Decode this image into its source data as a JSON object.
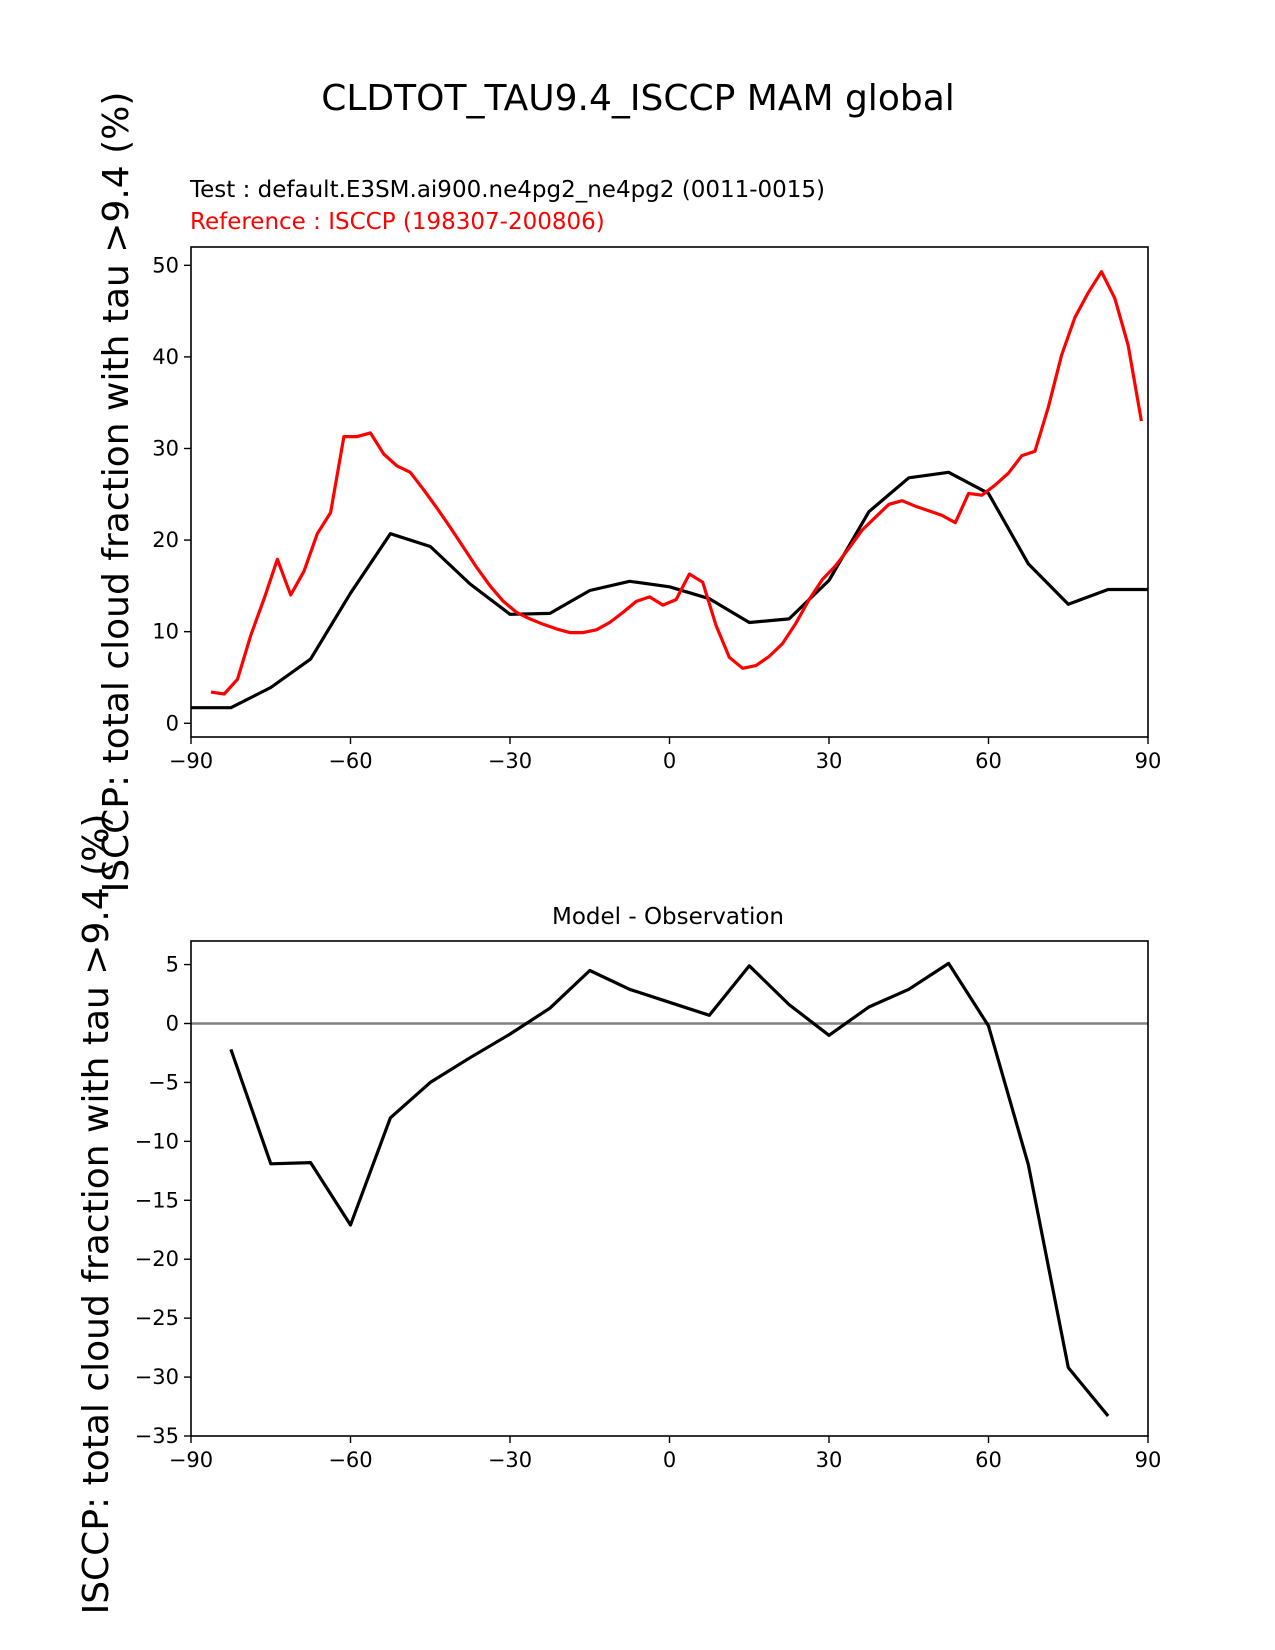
{
  "figure_title": "CLDTOT_TAU9.4_ISCCP MAM global",
  "top_panel": {
    "test_label": "Test : default.E3SM.ai900.ne4pg2_ne4pg2 (0011-0015)",
    "reference_label": "Reference : ISCCP (198307-200806)",
    "ylabel": "ISCCP: total cloud fraction with tau >9.4 (%)"
  },
  "bottom_panel": {
    "title": "Model - Observation",
    "ylabel": "ISCCP: total cloud fraction with tau >9.4 (%)"
  },
  "colors": {
    "test": "#000000",
    "reference": "#ff0000",
    "diff": "#000000",
    "zero_line": "#808080"
  },
  "chart_data": [
    {
      "type": "line",
      "title": "",
      "xlabel": "",
      "ylabel": "ISCCP: total cloud fraction with tau >9.4 (%)",
      "xlim": [
        -90,
        90
      ],
      "ylim": [
        -1.5,
        52
      ],
      "xticks": [
        -90,
        -60,
        -30,
        0,
        30,
        60,
        90
      ],
      "yticks": [
        0,
        10,
        20,
        30,
        40,
        50
      ],
      "grid": false,
      "series": [
        {
          "name": "Test",
          "color": "#000000",
          "x": [
            -90,
            -82.5,
            -75,
            -67.5,
            -60,
            -52.5,
            -45,
            -37.5,
            -30,
            -22.5,
            -15,
            -7.5,
            0,
            7.5,
            15,
            22.5,
            30,
            37.5,
            45,
            52.5,
            60,
            67.5,
            75,
            82.5,
            90
          ],
          "y": [
            1.7,
            1.7,
            3.9,
            7.0,
            14.2,
            20.7,
            19.3,
            15.2,
            11.9,
            12.0,
            14.5,
            15.5,
            14.9,
            13.6,
            11.0,
            11.4,
            15.6,
            23.1,
            26.8,
            27.4,
            25.1,
            17.4,
            13.0,
            14.6,
            14.6
          ]
        },
        {
          "name": "Reference",
          "color": "#ff0000",
          "x": [
            -86.25,
            -83.75,
            -81.25,
            -78.75,
            -76.25,
            -73.75,
            -71.25,
            -68.75,
            -66.25,
            -63.75,
            -61.25,
            -58.75,
            -56.25,
            -53.75,
            -51.25,
            -48.75,
            -46.25,
            -43.75,
            -41.25,
            -38.75,
            -36.25,
            -33.75,
            -31.25,
            -28.75,
            -26.25,
            -23.75,
            -21.25,
            -18.75,
            -16.25,
            -13.75,
            -11.25,
            -8.75,
            -6.25,
            -3.75,
            -1.25,
            1.25,
            3.75,
            6.25,
            8.75,
            11.25,
            13.75,
            16.25,
            18.75,
            21.25,
            23.75,
            26.25,
            28.75,
            31.25,
            33.75,
            36.25,
            38.75,
            41.25,
            43.75,
            46.25,
            48.75,
            51.25,
            53.75,
            56.25,
            58.75,
            61.25,
            63.75,
            66.25,
            68.75,
            71.25,
            73.75,
            76.25,
            78.75,
            81.25,
            83.75,
            86.25,
            88.75
          ],
          "y": [
            3.4,
            3.2,
            4.8,
            9.6,
            13.6,
            17.9,
            14.0,
            16.6,
            20.7,
            23.0,
            31.3,
            31.3,
            31.7,
            29.4,
            28.1,
            27.4,
            25.5,
            23.5,
            21.4,
            19.2,
            17.0,
            15.0,
            13.3,
            12.1,
            11.4,
            10.8,
            10.3,
            9.9,
            9.9,
            10.2,
            11.0,
            12.1,
            13.3,
            13.8,
            12.9,
            13.5,
            16.3,
            15.4,
            10.7,
            7.2,
            6.0,
            6.3,
            7.3,
            8.7,
            10.9,
            13.5,
            15.7,
            17.2,
            19.1,
            21.1,
            22.5,
            23.9,
            24.3,
            23.7,
            23.2,
            22.7,
            21.9,
            25.1,
            24.9,
            26.0,
            27.3,
            29.2,
            29.7,
            34.5,
            40.2,
            44.3,
            47.0,
            49.3,
            46.4,
            41.3,
            33.0
          ]
        }
      ]
    },
    {
      "type": "line",
      "title": "Model - Observation",
      "xlabel": "",
      "ylabel": "ISCCP: total cloud fraction with tau >9.4 (%)",
      "xlim": [
        -90,
        90
      ],
      "ylim": [
        -35,
        7
      ],
      "xticks": [
        -90,
        -60,
        -30,
        0,
        30,
        60,
        90
      ],
      "yticks": [
        5,
        0,
        -5,
        -10,
        -15,
        -20,
        -25,
        -30,
        -35
      ],
      "grid": false,
      "zero_line": true,
      "series": [
        {
          "name": "",
          "color": "#000000",
          "x": [
            -82.5,
            -75,
            -67.5,
            -60,
            -52.5,
            -45,
            -37.5,
            -30,
            -22.5,
            -15,
            -7.5,
            0,
            7.5,
            15,
            22.5,
            30,
            37.5,
            45,
            52.5,
            60,
            67.5,
            75,
            82.5
          ],
          "y": [
            -2.2,
            -11.9,
            -11.8,
            -17.1,
            -8.0,
            -5.0,
            -2.9,
            -0.9,
            1.3,
            4.5,
            2.9,
            1.8,
            0.7,
            4.9,
            1.6,
            -1.0,
            1.4,
            2.9,
            5.1,
            -0.2,
            -12.0,
            -29.2,
            -33.3
          ]
        }
      ]
    }
  ]
}
